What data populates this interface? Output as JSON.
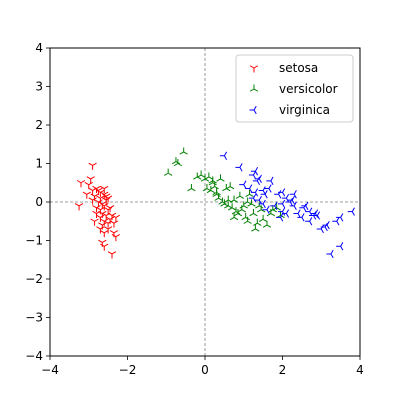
{
  "chart_data": {
    "type": "scatter",
    "title": "",
    "xlabel": "",
    "ylabel": "",
    "xlim": [
      -4,
      4
    ],
    "ylim": [
      -4,
      4
    ],
    "xticks": [
      -4,
      -2,
      0,
      2,
      4
    ],
    "yticks": [
      -4,
      -3,
      -2,
      -1,
      0,
      1,
      2,
      3,
      4
    ],
    "xtick_labels": [
      "−4",
      "−2",
      "0",
      "2",
      "4"
    ],
    "ytick_labels": [
      "−4",
      "−3",
      "−2",
      "−1",
      "0",
      "1",
      "2",
      "3",
      "4"
    ],
    "grid": false,
    "reference_lines": [
      "x = 0",
      "y = 0"
    ],
    "legend": {
      "position": "top-right",
      "entries": [
        "setosa",
        "versicolor",
        "virginica"
      ]
    },
    "series": [
      {
        "name": "setosa",
        "color": "#ff0000",
        "marker": "tri-down",
        "points": [
          [
            -2.9,
            0.95
          ],
          [
            -3.2,
            0.5
          ],
          [
            -3.0,
            0.45
          ],
          [
            -2.95,
            0.6
          ],
          [
            -2.8,
            0.35
          ],
          [
            -2.75,
            0.3
          ],
          [
            -2.7,
            0.25
          ],
          [
            -2.6,
            0.2
          ],
          [
            -2.85,
            0.15
          ],
          [
            -2.7,
            0.1
          ],
          [
            -2.55,
            0.15
          ],
          [
            -2.9,
            0.3
          ],
          [
            -2.75,
            0.0
          ],
          [
            -2.65,
            -0.05
          ],
          [
            -2.6,
            -0.1
          ],
          [
            -2.8,
            -0.15
          ],
          [
            -2.7,
            -0.2
          ],
          [
            -2.5,
            -0.2
          ],
          [
            -2.65,
            -0.3
          ],
          [
            -2.55,
            -0.35
          ],
          [
            -2.4,
            -0.35
          ],
          [
            -2.3,
            -0.4
          ],
          [
            -2.7,
            -0.4
          ],
          [
            -2.6,
            -0.5
          ],
          [
            -2.5,
            -0.55
          ],
          [
            -2.65,
            -0.6
          ],
          [
            -2.5,
            -0.7
          ],
          [
            -2.6,
            -0.8
          ],
          [
            -2.35,
            -0.8
          ],
          [
            -2.3,
            -0.9
          ],
          [
            -2.65,
            -1.05
          ],
          [
            -2.6,
            -1.15
          ],
          [
            -2.4,
            -1.35
          ],
          [
            -3.25,
            -0.1
          ],
          [
            -2.9,
            0.05
          ],
          [
            -2.55,
            0.05
          ],
          [
            -2.45,
            -0.15
          ],
          [
            -2.8,
            -0.3
          ],
          [
            -2.45,
            -0.45
          ],
          [
            -2.7,
            -0.7
          ],
          [
            -2.35,
            -0.55
          ],
          [
            -3.05,
            0.2
          ],
          [
            -2.6,
            0.35
          ],
          [
            -2.85,
            -0.5
          ],
          [
            -2.5,
            0.1
          ]
        ]
      },
      {
        "name": "versicolor",
        "color": "#008000",
        "marker": "tri-up",
        "points": [
          [
            -0.55,
            1.3
          ],
          [
            -0.75,
            1.05
          ],
          [
            -0.7,
            1.0
          ],
          [
            -0.95,
            0.75
          ],
          [
            -0.35,
            0.35
          ],
          [
            -0.2,
            0.65
          ],
          [
            -0.1,
            0.7
          ],
          [
            0.0,
            0.6
          ],
          [
            0.05,
            0.35
          ],
          [
            0.15,
            0.3
          ],
          [
            0.2,
            0.5
          ],
          [
            0.25,
            0.4
          ],
          [
            0.3,
            0.2
          ],
          [
            0.35,
            0.1
          ],
          [
            0.4,
            0.6
          ],
          [
            0.45,
            0.0
          ],
          [
            0.55,
            0.35
          ],
          [
            0.6,
            -0.1
          ],
          [
            0.7,
            -0.15
          ],
          [
            0.75,
            0.05
          ],
          [
            0.8,
            -0.25
          ],
          [
            0.85,
            -0.3
          ],
          [
            0.95,
            -0.2
          ],
          [
            1.0,
            -0.1
          ],
          [
            1.05,
            -0.4
          ],
          [
            1.1,
            -0.5
          ],
          [
            1.15,
            0.2
          ],
          [
            1.2,
            -0.05
          ],
          [
            1.25,
            -0.3
          ],
          [
            1.3,
            -0.7
          ],
          [
            1.35,
            -0.55
          ],
          [
            1.45,
            -0.2
          ],
          [
            1.5,
            -0.45
          ],
          [
            1.6,
            -0.6
          ],
          [
            1.7,
            -0.3
          ],
          [
            1.85,
            -0.15
          ],
          [
            1.95,
            -0.35
          ],
          [
            0.65,
            0.4
          ],
          [
            0.9,
            0.15
          ],
          [
            0.5,
            -0.05
          ],
          [
            0.2,
            0.55
          ],
          [
            1.1,
            0.0
          ],
          [
            0.75,
            -0.4
          ],
          [
            1.4,
            -0.1
          ],
          [
            0.3,
            0.25
          ],
          [
            0.1,
            0.65
          ],
          [
            1.75,
            -0.2
          ],
          [
            0.6,
            0.05
          ]
        ]
      },
      {
        "name": "virginica",
        "color": "#0000ff",
        "marker": "tri-left",
        "points": [
          [
            0.5,
            1.2
          ],
          [
            0.9,
            0.9
          ],
          [
            1.0,
            0.45
          ],
          [
            1.25,
            0.7
          ],
          [
            1.3,
            0.8
          ],
          [
            1.4,
            0.6
          ],
          [
            1.5,
            0.3
          ],
          [
            1.55,
            0.2
          ],
          [
            1.3,
            0.25
          ],
          [
            1.25,
            0.1
          ],
          [
            1.4,
            0.05
          ],
          [
            1.7,
            0.55
          ],
          [
            1.9,
            0.2
          ],
          [
            2.0,
            0.25
          ],
          [
            2.1,
            0.1
          ],
          [
            2.3,
            0.2
          ],
          [
            1.6,
            -0.2
          ],
          [
            1.8,
            -0.1
          ],
          [
            2.0,
            -0.25
          ],
          [
            2.1,
            -0.3
          ],
          [
            2.2,
            0.0
          ],
          [
            2.3,
            -0.1
          ],
          [
            2.4,
            -0.3
          ],
          [
            2.5,
            -0.4
          ],
          [
            2.6,
            -0.1
          ],
          [
            2.7,
            -0.25
          ],
          [
            2.8,
            -0.35
          ],
          [
            2.9,
            -0.35
          ],
          [
            3.0,
            -0.7
          ],
          [
            3.15,
            -0.6
          ],
          [
            3.25,
            -1.35
          ],
          [
            3.4,
            -0.5
          ],
          [
            3.5,
            -0.4
          ],
          [
            3.5,
            -1.15
          ],
          [
            3.8,
            -0.25
          ],
          [
            2.0,
            -0.05
          ],
          [
            1.5,
            -0.05
          ],
          [
            2.55,
            -0.15
          ],
          [
            1.15,
            0.35
          ],
          [
            1.65,
            0.35
          ],
          [
            2.85,
            -0.3
          ],
          [
            2.25,
            0.05
          ],
          [
            1.95,
            -0.4
          ],
          [
            2.7,
            -0.5
          ],
          [
            1.35,
            0.55
          ],
          [
            3.1,
            -0.65
          ]
        ]
      }
    ]
  }
}
